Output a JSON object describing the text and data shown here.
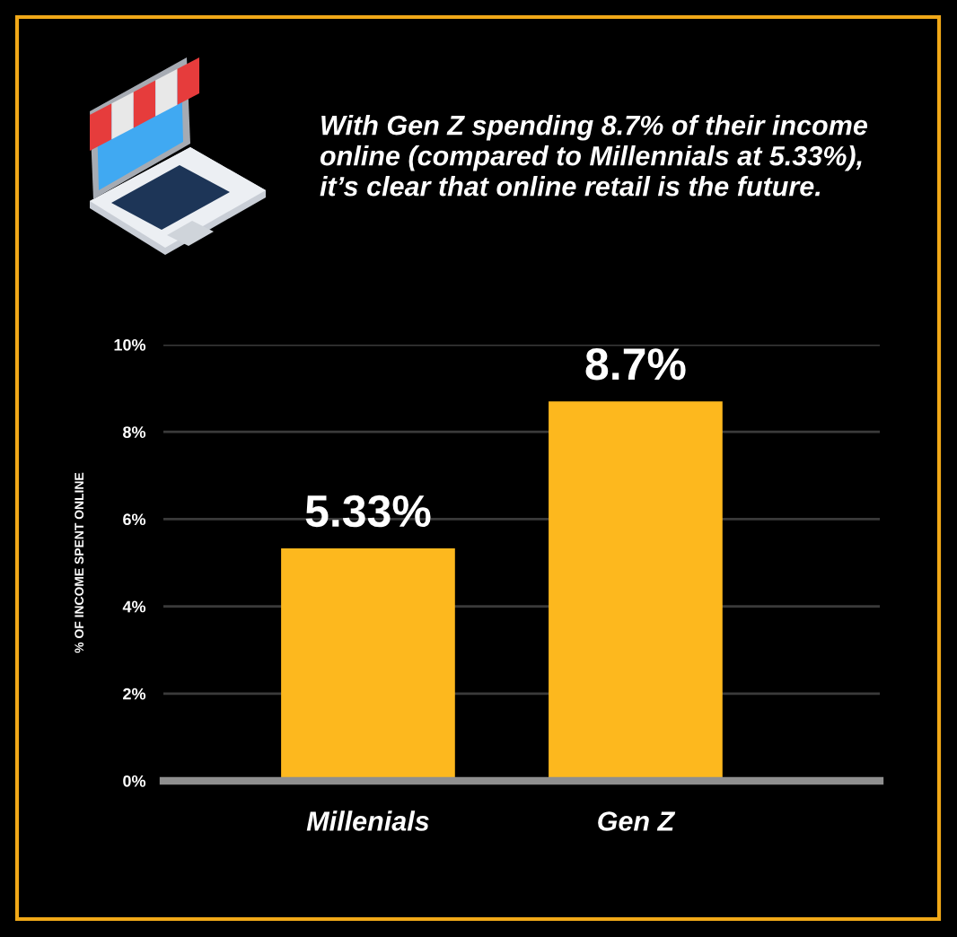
{
  "chart_data": {
    "type": "bar",
    "title": "With Gen Z spending 8.7% of their income online (compared to Millennials at 5.33%), it’s clear that online retail is the future.",
    "ylabel": "% OF INCOME SPENT ONLINE",
    "categories": [
      "Millenials",
      "Gen Z"
    ],
    "values": [
      5.33,
      8.7
    ],
    "color": "#fdb81e",
    "value_labels": [
      "5.33%",
      "8.7%"
    ],
    "ylim": [
      0,
      10
    ],
    "yticks": [
      {
        "value": 0,
        "label": "0%"
      },
      {
        "value": 2,
        "label": "2%"
      },
      {
        "value": 4,
        "label": "4%"
      },
      {
        "value": 6,
        "label": "6%"
      },
      {
        "value": 8,
        "label": "8%"
      },
      {
        "value": 10,
        "label": "10%"
      }
    ],
    "grid": "y"
  }
}
